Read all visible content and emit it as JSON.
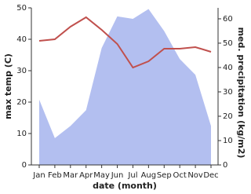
{
  "chart_data": {
    "type": "line",
    "x_label": "date (month)",
    "y_label": "max temp (C)",
    "y2_label": "med. precipitation (kg/m2)",
    "categories": [
      "Jan",
      "Feb",
      "Mar",
      "Apr",
      "May",
      "Jun",
      "Jul",
      "Aug",
      "Sep",
      "Oct",
      "Nov",
      "Dec"
    ],
    "ylim": [
      0,
      50
    ],
    "yticks": [
      0,
      10,
      20,
      30,
      40,
      50
    ],
    "y2lim": [
      0,
      64.5
    ],
    "y2ticks": [
      0,
      10,
      20,
      30,
      40,
      50,
      60
    ],
    "series": [
      {
        "name": "med. precipitation",
        "type": "area",
        "axis": "y2",
        "color": "#b3bff0",
        "values": [
          26.8,
          11,
          16,
          22.5,
          48,
          61,
          60,
          64,
          55,
          43.5,
          37,
          16
        ]
      },
      {
        "name": "max temp",
        "type": "line",
        "color": "#c0504d",
        "values": [
          39.5,
          40,
          44,
          47,
          43,
          38.5,
          31,
          33,
          37,
          37,
          37.5,
          36
        ]
      }
    ]
  }
}
